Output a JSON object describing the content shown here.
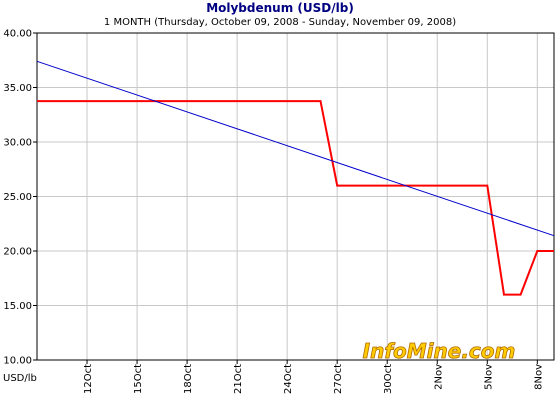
{
  "chart_data": {
    "type": "line",
    "title": "Molybdenum (USD/lb)",
    "subtitle": "1 MONTH (Thursday, October 09, 2008  -  Sunday, November 09, 2008)",
    "ylabel": "USD/lb",
    "ylim": [
      10,
      40
    ],
    "y_ticks": [
      "10.00",
      "15.00",
      "20.00",
      "25.00",
      "30.00",
      "35.00",
      "40.00"
    ],
    "x_ticks": [
      "12Oct",
      "15Oct",
      "18Oct",
      "21Oct",
      "24Oct",
      "27Oct",
      "30Oct",
      "2Nov",
      "5Nov",
      "8Nov"
    ],
    "x_start": "9Oct",
    "x_end": "9Nov",
    "grid": true,
    "series": [
      {
        "color": "#ff0000",
        "x": [
          "9Oct",
          "26Oct",
          "27Oct",
          "5Nov",
          "6Nov",
          "7Nov",
          "8Nov",
          "9Nov"
        ],
        "values": [
          33.75,
          33.75,
          26.0,
          26.0,
          16.0,
          16.0,
          20.0,
          20.0
        ]
      },
      {
        "color": "#0000cc",
        "x": [
          "9Oct",
          "9Nov"
        ],
        "values": [
          37.4,
          21.4
        ]
      }
    ],
    "watermark": "InfoMine.com"
  },
  "colors": {
    "title": "#000080",
    "grid": "#c8c8c8",
    "price_line": "#ff0000",
    "trend_line": "#0000cc",
    "watermark_fill": "#ffcc00",
    "watermark_stroke": "#b36b00"
  }
}
